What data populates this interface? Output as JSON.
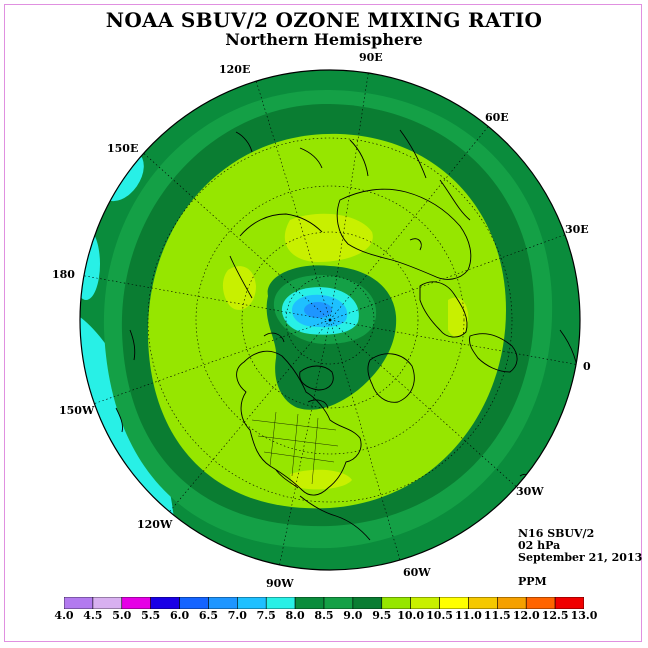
{
  "title": "NOAA SBUV/2 OZONE MIXING RATIO",
  "subtitle": "Northern Hemisphere",
  "longitude_labels": [
    "90E",
    "60E",
    "30E",
    "0",
    "30W",
    "60W",
    "90W",
    "120W",
    "150W",
    "180",
    "150E",
    "120E"
  ],
  "info": {
    "instrument": "N16 SBUV/2",
    "level": "02 hPa",
    "date": "September 21, 2013",
    "units": "PPM"
  },
  "colorbar": {
    "ticks": [
      "4.0",
      "4.5",
      "5.0",
      "5.5",
      "6.0",
      "6.5",
      "7.0",
      "7.5",
      "8.0",
      "8.5",
      "9.0",
      "9.5",
      "10.0",
      "10.5",
      "11.0",
      "11.5",
      "12.0",
      "12.5",
      "13.0"
    ],
    "colors": [
      "#b27aef",
      "#d8b0f0",
      "#e600e6",
      "#1a00e6",
      "#1464ff",
      "#1e96ff",
      "#1ec0ff",
      "#28f0e6",
      "#0a8c3c",
      "#14a046",
      "#0a7d32",
      "#96e600",
      "#c8f000",
      "#ffff00",
      "#f5c800",
      "#f5a000",
      "#ff6400",
      "#f00000",
      "#8b5a32"
    ]
  },
  "map_colors": {
    "band_8_0_8_5": "#0a8c3c",
    "band_8_5_9_0": "#14a046",
    "band_9_0": "#0a7d32",
    "band_9_5_10_0": "#96e600",
    "band_10_0_10_5": "#c8f000",
    "band_7_5_8_0": "#28f0e6",
    "band_7_0_7_5": "#1ec0ff",
    "band_6_5_7_0": "#1e96ff",
    "coast": "#000000"
  }
}
